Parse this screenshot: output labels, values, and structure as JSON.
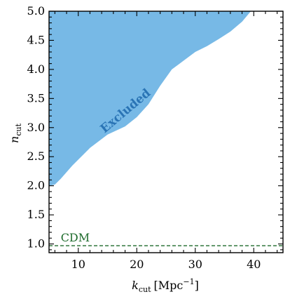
{
  "chart_data": {
    "type": "area",
    "xlabel": {
      "symbol": "k",
      "sub": "cut",
      "unit": "[Mpc",
      "unit_exp": "−1",
      "unit_close": "]"
    },
    "ylabel": {
      "symbol": "n",
      "sub": "cut"
    },
    "xlim": [
      5,
      45
    ],
    "ylim": [
      0.85,
      5.0
    ],
    "xticks": [
      10,
      20,
      30,
      40
    ],
    "xtick_labels": [
      "10",
      "20",
      "30",
      "40"
    ],
    "yticks": [
      1.0,
      1.5,
      2.0,
      2.5,
      3.0,
      3.5,
      4.0,
      4.5,
      5.0
    ],
    "ytick_labels": [
      "1.0",
      "1.5",
      "2.0",
      "2.5",
      "3.0",
      "3.5",
      "4.0",
      "4.5",
      "5.0"
    ],
    "grid": false,
    "excluded_region": {
      "label": "Excluded",
      "color": "#77b9e6",
      "label_color": "#2a74b5",
      "boundary": [
        {
          "x": 5.0,
          "y": 2.0
        },
        {
          "x": 6.0,
          "y": 2.02
        },
        {
          "x": 7.0,
          "y": 2.12
        },
        {
          "x": 9.0,
          "y": 2.35
        },
        {
          "x": 12.0,
          "y": 2.65
        },
        {
          "x": 15.0,
          "y": 2.88
        },
        {
          "x": 18.0,
          "y": 3.02
        },
        {
          "x": 20.0,
          "y": 3.18
        },
        {
          "x": 22.0,
          "y": 3.4
        },
        {
          "x": 24.0,
          "y": 3.72
        },
        {
          "x": 26.0,
          "y": 4.0
        },
        {
          "x": 28.0,
          "y": 4.15
        },
        {
          "x": 30.0,
          "y": 4.3
        },
        {
          "x": 32.0,
          "y": 4.4
        },
        {
          "x": 34.0,
          "y": 4.52
        },
        {
          "x": 36.0,
          "y": 4.65
        },
        {
          "x": 38.0,
          "y": 4.82
        },
        {
          "x": 39.5,
          "y": 5.0
        }
      ]
    },
    "reference_line": {
      "label": "CDM",
      "y": 0.97,
      "color": "#1e6b2c",
      "style": "dashed"
    }
  }
}
